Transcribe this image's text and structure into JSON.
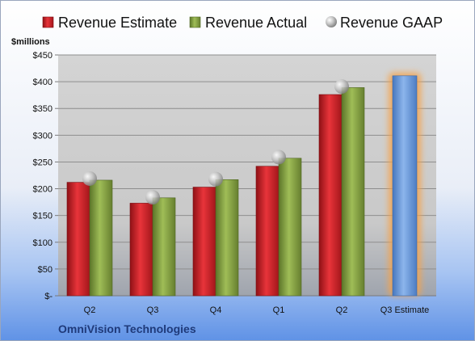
{
  "chart_data": {
    "type": "bar",
    "categories": [
      "Q2",
      "Q3",
      "Q4",
      "Q1",
      "Q2",
      "Q3 Estimate"
    ],
    "series": [
      {
        "name": "Revenue Estimate",
        "values": [
          212,
          173,
          203,
          242,
          376,
          null
        ]
      },
      {
        "name": "Revenue Actual",
        "values": [
          216,
          183,
          217,
          257,
          389,
          null
        ]
      },
      {
        "name": "Revenue GAAP",
        "values": [
          219,
          184,
          218,
          259,
          391,
          null
        ]
      },
      {
        "name": "",
        "values": [
          null,
          null,
          null,
          null,
          null,
          411
        ]
      }
    ],
    "unit_label": "$millions",
    "ylim": [
      0,
      450
    ],
    "yticks": [
      0,
      50,
      100,
      150,
      200,
      250,
      300,
      350,
      400,
      450
    ],
    "ytick_labels": [
      "$-",
      "$50",
      "$100",
      "$150",
      "$200",
      "$250",
      "$300",
      "$350",
      "$400",
      "$450"
    ],
    "grid": true,
    "legend_position": "top",
    "footer": "OmniVision Technologies",
    "colors": {
      "estimate": "#cc1f24",
      "actual": "#7f9e3c",
      "gaap": "#b9b9b9",
      "projection": "#5b8fd6",
      "projection_glow": "#f6a34a",
      "footer_text": "#1f3a7a"
    }
  }
}
